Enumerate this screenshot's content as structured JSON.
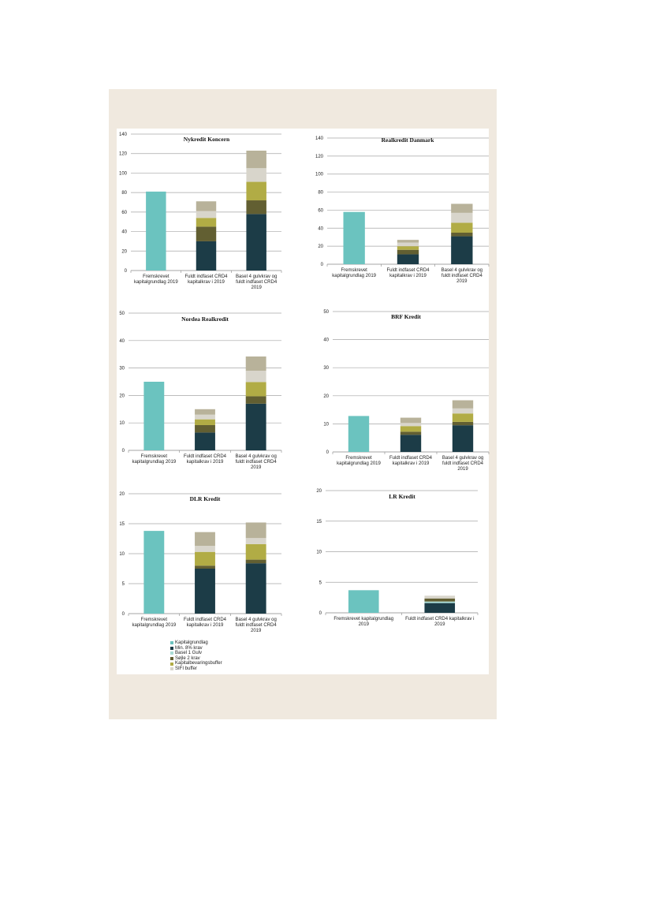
{
  "colors": {
    "Kapitalgrundlag": "#6bc3bf",
    "Min. 8% krav": "#1c3c47",
    "Basel 1 Gulv": "#a9dcd6",
    "Søjle 2 krav": "#625f32",
    "Kapitalbevaringsbuffer": "#b1ac45",
    "SIFI buffer": "#d8d5cb",
    "top": "#b8b29a"
  },
  "legend": [
    "Kapitalgrundlag",
    "Min. 8% krav",
    "Basel 1 Gulv",
    "Søjle 2 krav",
    "Kapitalbevaringsbuffer",
    "SIFI buffer"
  ],
  "chart_data": [
    {
      "type": "bar",
      "stacked": true,
      "title": "Nykredit Koncern",
      "ylim": [
        0,
        140
      ],
      "yticks": [
        0,
        20,
        40,
        60,
        80,
        100,
        120,
        140
      ],
      "categories": [
        [
          "Fremskrevet",
          "kapitalgrundlag 2019"
        ],
        [
          "Fuldt indfaset CRD4",
          "kapitalkrav i 2019"
        ],
        [
          "Basel 4 gulvkrav og",
          "fuldt indfaset CRD4",
          "2019"
        ]
      ],
      "series": [
        {
          "name": "Kapitalgrundlag",
          "values": [
            81,
            0,
            0
          ]
        },
        {
          "name": "Min. 8% krav",
          "values": [
            0,
            30,
            58
          ]
        },
        {
          "name": "Basel 1 Gulv",
          "values": [
            0,
            0,
            0
          ]
        },
        {
          "name": "Søjle 2 krav",
          "values": [
            0,
            15,
            14
          ]
        },
        {
          "name": "Kapitalbevaringsbuffer",
          "values": [
            0,
            9,
            19
          ]
        },
        {
          "name": "SIFI buffer",
          "values": [
            0,
            7,
            14
          ]
        },
        {
          "name": "",
          "values": [
            0,
            10,
            18
          ]
        }
      ]
    },
    {
      "type": "bar",
      "stacked": true,
      "title": "Realkredit Danmark",
      "ylim": [
        0,
        140
      ],
      "yticks": [
        0,
        20,
        40,
        60,
        80,
        100,
        120,
        140
      ],
      "categories": [
        [
          "Fremskrevet",
          "kapitalgrundlag 2019"
        ],
        [
          "Fuldt indfaset CRD4",
          "kapitalkrav i 2019"
        ],
        [
          "Basel 4 gulvkrav og",
          "fuldt indfaset CRD4",
          "2019"
        ]
      ],
      "series": [
        {
          "name": "Kapitalgrundlag",
          "values": [
            58,
            0,
            0
          ]
        },
        {
          "name": "Min. 8% krav",
          "values": [
            0,
            11,
            31
          ]
        },
        {
          "name": "Basel 1 Gulv",
          "values": [
            0,
            0,
            0
          ]
        },
        {
          "name": "Søjle 2 krav",
          "values": [
            0,
            5,
            4
          ]
        },
        {
          "name": "Kapitalbevaringsbuffer",
          "values": [
            0,
            4,
            11
          ]
        },
        {
          "name": "SIFI buffer",
          "values": [
            0,
            4,
            11
          ]
        },
        {
          "name": "",
          "values": [
            0,
            3,
            10
          ]
        }
      ]
    },
    {
      "type": "bar",
      "stacked": true,
      "title": "Nordea Realkredit",
      "ylim": [
        0,
        50
      ],
      "yticks": [
        0,
        10,
        20,
        30,
        40,
        50
      ],
      "categories": [
        [
          "Fremskrevet",
          "kapitalgrundlag 2019"
        ],
        [
          "Fuldt indfaset CRD4",
          "kapitalkrav i 2019"
        ],
        [
          "Basel 4 gulvkrav og",
          "fuldt indfaset CRD4",
          "2019"
        ]
      ],
      "series": [
        {
          "name": "Kapitalgrundlag",
          "values": [
            25,
            0,
            0
          ]
        },
        {
          "name": "Min. 8% krav",
          "values": [
            0,
            6.5,
            17
          ]
        },
        {
          "name": "Basel 1 Gulv",
          "values": [
            0,
            0,
            0
          ]
        },
        {
          "name": "Søjle 2 krav",
          "values": [
            0,
            2.7,
            2.7
          ]
        },
        {
          "name": "Kapitalbevaringsbuffer",
          "values": [
            0,
            2.1,
            5.2
          ]
        },
        {
          "name": "SIFI buffer",
          "values": [
            0,
            1.7,
            4.1
          ]
        },
        {
          "name": "",
          "values": [
            0,
            2,
            5.2
          ]
        }
      ]
    },
    {
      "type": "bar",
      "stacked": true,
      "title": "BRF Kredit",
      "ylim": [
        0,
        50
      ],
      "yticks": [
        0,
        10,
        20,
        30,
        40,
        50
      ],
      "categories": [
        [
          "Fremskrevet",
          "kapitalgrundlag 2019"
        ],
        [
          "Fuldt indfaset CRD4",
          "kapitalkrav i 2019"
        ],
        [
          "Basel 4 gulvkrav og",
          "fuldt indfaset CRD4",
          "2019"
        ]
      ],
      "series": [
        {
          "name": "Kapitalgrundlag",
          "values": [
            12.8,
            0,
            0
          ]
        },
        {
          "name": "Min. 8% krav",
          "values": [
            0,
            6.1,
            9.5
          ]
        },
        {
          "name": "Basel 1 Gulv",
          "values": [
            0,
            0,
            0
          ]
        },
        {
          "name": "Søjle 2 krav",
          "values": [
            0,
            1.1,
            1.2
          ]
        },
        {
          "name": "Kapitalbevaringsbuffer",
          "values": [
            0,
            2,
            3
          ]
        },
        {
          "name": "SIFI buffer",
          "values": [
            0,
            1.1,
            1.8
          ]
        },
        {
          "name": "",
          "values": [
            0,
            1.9,
            2.9
          ]
        }
      ]
    },
    {
      "type": "bar",
      "stacked": true,
      "title": "DLR Kredit",
      "ylim": [
        0,
        20
      ],
      "yticks": [
        0,
        5,
        10,
        15,
        20
      ],
      "categories": [
        [
          "Fremskrevet",
          "kapitalgrundlag 2019"
        ],
        [
          "Fuldt indfaset CRD4",
          "kapitalkrav i 2019"
        ],
        [
          "Basel 4 gulvkrav og",
          "fuldt indfaset CRD4",
          "2019"
        ]
      ],
      "series": [
        {
          "name": "Kapitalgrundlag",
          "values": [
            13.8,
            0,
            0
          ]
        },
        {
          "name": "Min. 8% krav",
          "values": [
            0,
            7.5,
            8.4
          ]
        },
        {
          "name": "Basel 1 Gulv",
          "values": [
            0,
            0,
            0
          ]
        },
        {
          "name": "Søjle 2 krav",
          "values": [
            0,
            0.5,
            0.6
          ]
        },
        {
          "name": "Kapitalbevaringsbuffer",
          "values": [
            0,
            2.3,
            2.6
          ]
        },
        {
          "name": "SIFI buffer",
          "values": [
            0,
            1,
            1
          ]
        },
        {
          "name": "",
          "values": [
            0,
            2.3,
            2.6
          ]
        }
      ]
    },
    {
      "type": "bar",
      "stacked": true,
      "title": "LR Kredit",
      "ylim": [
        0,
        20
      ],
      "yticks": [
        0,
        5,
        10,
        15,
        20
      ],
      "categories": [
        [
          "Fremskrevet kapitalgrundlag",
          "2019"
        ],
        [
          "Fuldt indfaset CRD4 kapitalkrav i",
          "2019"
        ]
      ],
      "series": [
        {
          "name": "Kapitalgrundlag",
          "values": [
            3.7,
            0
          ]
        },
        {
          "name": "Min. 8% krav",
          "values": [
            0,
            1.6
          ]
        },
        {
          "name": "Basel 1 Gulv",
          "values": [
            0,
            0.25
          ]
        },
        {
          "name": "Søjle 2 krav",
          "values": [
            0,
            0.5
          ]
        },
        {
          "name": "Kapitalbevaringsbuffer",
          "values": [
            0,
            0
          ]
        },
        {
          "name": "SIFI buffer",
          "values": [
            0,
            0.45
          ]
        },
        {
          "name": "",
          "values": [
            0,
            0
          ]
        }
      ]
    }
  ]
}
